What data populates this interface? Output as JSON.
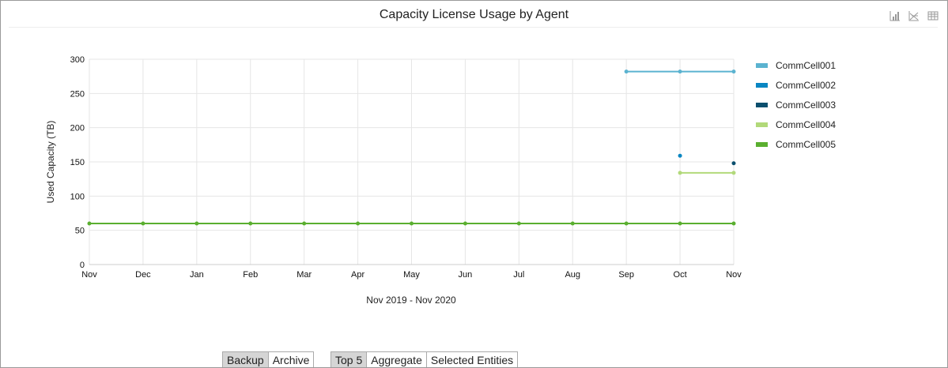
{
  "title": "Capacity License Usage by Agent",
  "toolbar": {
    "icons": [
      "bar-chart-icon",
      "line-chart-icon",
      "table-icon"
    ]
  },
  "chart_data": {
    "type": "line",
    "title": "Capacity License Usage by Agent",
    "xlabel": "Nov 2019 - Nov 2020",
    "ylabel": "Used Capacity (TB)",
    "categories": [
      "Nov",
      "Dec",
      "Jan",
      "Feb",
      "Mar",
      "Apr",
      "May",
      "Jun",
      "Jul",
      "Aug",
      "Sep",
      "Oct",
      "Nov"
    ],
    "ylim": [
      0,
      300
    ],
    "yticks": [
      0,
      50,
      100,
      150,
      200,
      250,
      300
    ],
    "grid": true,
    "legend_position": "right",
    "series": [
      {
        "name": "CommCell001",
        "color": "#5bb3d0",
        "values": [
          null,
          null,
          null,
          null,
          null,
          null,
          null,
          null,
          null,
          null,
          282,
          282,
          282
        ]
      },
      {
        "name": "CommCell002",
        "color": "#0a86c2",
        "values": [
          null,
          null,
          null,
          null,
          null,
          null,
          null,
          null,
          null,
          null,
          null,
          159,
          null
        ]
      },
      {
        "name": "CommCell003",
        "color": "#0b4f6e",
        "values": [
          null,
          null,
          null,
          null,
          null,
          null,
          null,
          null,
          null,
          null,
          null,
          null,
          148
        ]
      },
      {
        "name": "CommCell004",
        "color": "#b2d97a",
        "values": [
          null,
          null,
          null,
          null,
          null,
          null,
          null,
          null,
          null,
          null,
          null,
          134,
          134
        ]
      },
      {
        "name": "CommCell005",
        "color": "#5aaf2f",
        "values": [
          60,
          60,
          60,
          60,
          60,
          60,
          60,
          60,
          60,
          60,
          60,
          60,
          60
        ]
      }
    ]
  },
  "controls": {
    "type_buttons": [
      {
        "label": "Backup",
        "active": true
      },
      {
        "label": "Archive",
        "active": false
      }
    ],
    "view_buttons": [
      {
        "label": "Top 5",
        "active": true
      },
      {
        "label": "Aggregate",
        "active": false
      },
      {
        "label": "Selected Entities",
        "active": false
      }
    ]
  }
}
